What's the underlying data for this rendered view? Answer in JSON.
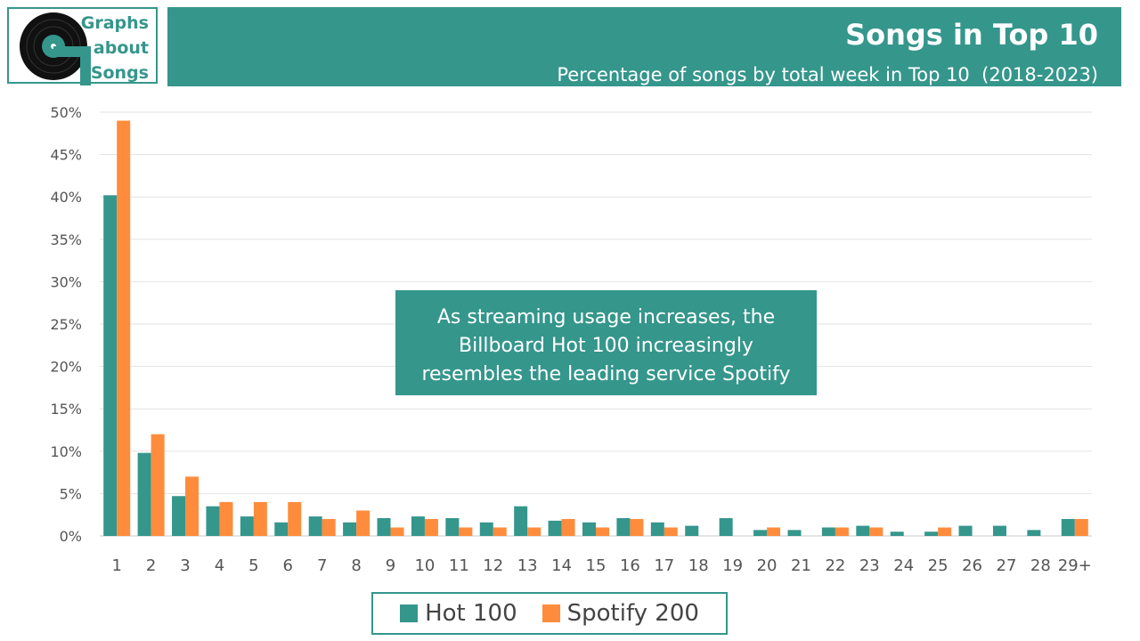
{
  "logo": {
    "lines": [
      "Graphs",
      "about",
      "Songs"
    ],
    "color": "#35968c"
  },
  "header": {
    "title": "Songs in Top 10",
    "subtitle": "Percentage of songs by total week in Top 10  (2018-2023)"
  },
  "annotation": {
    "lines": [
      "As streaming usage increases, the",
      "Billboard Hot 100 increasingly",
      "resembles the leading service Spotify"
    ]
  },
  "chart_data": {
    "type": "bar",
    "title": "Songs in Top 10",
    "subtitle": "Percentage of songs by total week in Top 10  (2018-2023)",
    "xlabel": "",
    "ylabel": "",
    "ylim": [
      0,
      50
    ],
    "ytick_step": 5,
    "ytick_suffix": "%",
    "grid": true,
    "legend_position": "bottom-center",
    "categories": [
      "1",
      "2",
      "3",
      "4",
      "5",
      "6",
      "7",
      "8",
      "9",
      "10",
      "11",
      "12",
      "13",
      "14",
      "15",
      "16",
      "17",
      "18",
      "19",
      "20",
      "21",
      "22",
      "23",
      "24",
      "25",
      "26",
      "27",
      "28",
      "29+"
    ],
    "series": [
      {
        "name": "Hot 100",
        "color": "#35968c",
        "values": [
          40.2,
          9.8,
          4.7,
          3.5,
          2.3,
          1.6,
          2.3,
          1.6,
          2.1,
          2.3,
          2.1,
          1.6,
          3.5,
          1.8,
          1.6,
          2.1,
          1.6,
          1.2,
          2.1,
          0.7,
          0.7,
          1.0,
          1.2,
          0.5,
          0.5,
          1.2,
          1.2,
          0.7,
          2.0
        ]
      },
      {
        "name": "Spotify 200",
        "color": "#ff8c3c",
        "values": [
          49.0,
          12.0,
          7.0,
          4.0,
          4.0,
          4.0,
          2.0,
          3.0,
          1.0,
          2.0,
          1.0,
          1.0,
          1.0,
          2.0,
          1.0,
          2.0,
          1.0,
          0,
          0,
          1.0,
          0,
          1.0,
          1.0,
          0,
          1.0,
          0,
          0,
          0,
          2.0
        ]
      }
    ]
  },
  "legend": {
    "items": [
      {
        "label": "Hot 100",
        "color": "#35968c"
      },
      {
        "label": "Spotify 200",
        "color": "#ff8c3c"
      }
    ]
  }
}
